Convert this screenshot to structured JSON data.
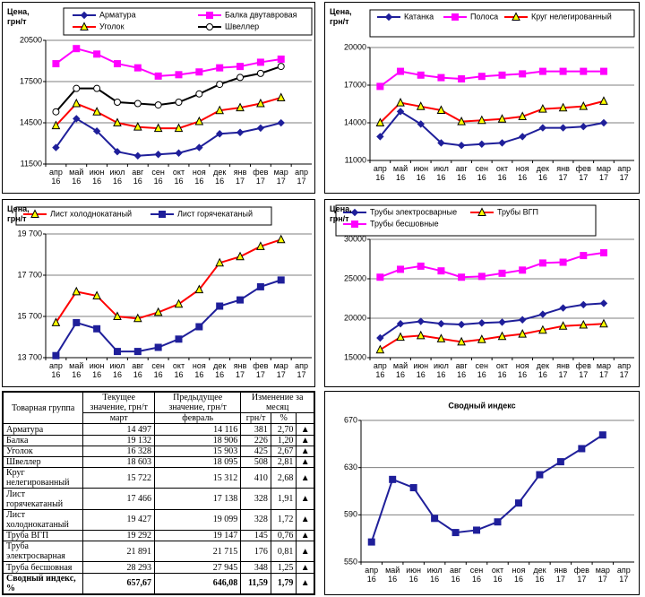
{
  "chart_data": [
    {
      "type": "line",
      "y_label": "Цена, грн/т",
      "categories": [
        "апр 16",
        "май 16",
        "июн 16",
        "июл 16",
        "авг 16",
        "сен 16",
        "окт 16",
        "ноя 16",
        "дек 16",
        "янв 17",
        "фев 17",
        "мар 17",
        "апр 17"
      ],
      "ylim": [
        11500,
        20500
      ],
      "yticks": [
        11500,
        14500,
        17500,
        20500
      ],
      "grid": true,
      "series": [
        {
          "name": "Арматура",
          "color": "#1f1f9a",
          "marker": "diamond",
          "values": [
            12700,
            14800,
            13900,
            12400,
            12100,
            12200,
            12300,
            12700,
            13700,
            13800,
            14116,
            14497,
            null
          ]
        },
        {
          "name": "Балка двутавровая",
          "color": "#ff00ff",
          "marker": "square",
          "values": [
            18800,
            19900,
            19500,
            18800,
            18500,
            17900,
            18000,
            18200,
            18500,
            18600,
            18906,
            19132,
            null
          ]
        },
        {
          "name": "Уголок",
          "color": "#ff0000",
          "marker": "triangle",
          "values": [
            14300,
            15900,
            15300,
            14500,
            14200,
            14100,
            14100,
            14600,
            15400,
            15600,
            15903,
            16328,
            null
          ]
        },
        {
          "name": "Швеллер",
          "color": "#000000",
          "marker": "circle",
          "values": [
            15300,
            17000,
            17000,
            16000,
            15900,
            15800,
            16000,
            16600,
            17300,
            17800,
            18095,
            18603,
            null
          ]
        }
      ]
    },
    {
      "type": "line",
      "y_label": "Цена, грн/т",
      "categories": [
        "апр 16",
        "май 16",
        "июн 16",
        "июл 16",
        "авг 16",
        "сен 16",
        "окт 16",
        "ноя 16",
        "дек 16",
        "янв 17",
        "фев 17",
        "мар 17",
        "апр 17"
      ],
      "ylim": [
        11000,
        20000
      ],
      "yticks": [
        11000,
        14000,
        17000,
        20000
      ],
      "grid": true,
      "series": [
        {
          "name": "Катанка",
          "color": "#1f1f9a",
          "marker": "diamond",
          "values": [
            12900,
            14900,
            13900,
            12400,
            12200,
            12300,
            12400,
            12900,
            13600,
            13600,
            13700,
            14000,
            null
          ]
        },
        {
          "name": "Полоса",
          "color": "#ff00ff",
          "marker": "square",
          "values": [
            16900,
            18100,
            17800,
            17600,
            17500,
            17700,
            17800,
            17900,
            18100,
            18100,
            18100,
            18100,
            null
          ]
        },
        {
          "name": "Круг нелегированный",
          "color": "#ff0000",
          "marker": "triangle",
          "values": [
            14000,
            15600,
            15300,
            15000,
            14100,
            14200,
            14300,
            14500,
            15100,
            15200,
            15312,
            15722,
            null
          ]
        }
      ]
    },
    {
      "type": "line",
      "y_label": "Цена, грн/т",
      "categories": [
        "апр 16",
        "май 16",
        "июн 16",
        "июл 16",
        "авг 16",
        "сен 16",
        "окт 16",
        "ноя 16",
        "дек 16",
        "янв 17",
        "фев 17",
        "мар 17",
        "апр 17"
      ],
      "ylim": [
        13700,
        19700
      ],
      "yticks": [
        {
          "value": 13700,
          "label": "13 700"
        },
        {
          "value": 15700,
          "label": "15 700"
        },
        {
          "value": 17700,
          "label": "17 700"
        },
        {
          "value": 19700,
          "label": "19 700"
        }
      ],
      "grid": true,
      "series": [
        {
          "name": "Лист холоднокатаный",
          "color": "#ff0000",
          "marker": "triangle",
          "values": [
            15400,
            16900,
            16700,
            15700,
            15600,
            15900,
            16300,
            17000,
            18300,
            18600,
            19099,
            19427,
            null
          ]
        },
        {
          "name": "Лист горячекатаный",
          "color": "#1f1f9a",
          "marker": "square",
          "values": [
            13800,
            15400,
            15100,
            14000,
            14000,
            14200,
            14600,
            15200,
            16200,
            16500,
            17138,
            17466,
            null
          ]
        }
      ]
    },
    {
      "type": "line",
      "y_label": "Цена, грн/т",
      "categories": [
        "апр 16",
        "май 16",
        "июн 16",
        "июл 16",
        "авг 16",
        "сен 16",
        "окт 16",
        "ноя 16",
        "дек 16",
        "янв 17",
        "фев 17",
        "мар 17",
        "апр 17"
      ],
      "ylim": [
        15000,
        30000
      ],
      "yticks": [
        15000,
        20000,
        25000,
        30000
      ],
      "grid": true,
      "series": [
        {
          "name": "Трубы электросварные",
          "color": "#1f1f9a",
          "marker": "diamond",
          "values": [
            17500,
            19300,
            19600,
            19300,
            19200,
            19400,
            19500,
            19800,
            20500,
            21300,
            21715,
            21891,
            null
          ]
        },
        {
          "name": "Трубы ВГП",
          "color": "#ff0000",
          "marker": "triangle",
          "values": [
            16000,
            17600,
            17800,
            17400,
            17000,
            17300,
            17700,
            18000,
            18500,
            19000,
            19147,
            19292,
            null
          ]
        },
        {
          "name": "Трубы бесшовные",
          "color": "#ff00ff",
          "marker": "square",
          "values": [
            25200,
            26200,
            26600,
            26000,
            25200,
            25300,
            25700,
            26100,
            27000,
            27100,
            27945,
            28293,
            null
          ]
        }
      ]
    },
    {
      "type": "line",
      "title": "Сводный индекс",
      "categories": [
        "апр 16",
        "май 16",
        "июн 16",
        "июл 16",
        "авг 16",
        "сен 16",
        "окт 16",
        "ноя 16",
        "дек 16",
        "янв 17",
        "фев 17",
        "мар 17",
        "апр 17"
      ],
      "ylim": [
        550,
        670
      ],
      "yticks": [
        550,
        590,
        630,
        670
      ],
      "grid": true,
      "series": [
        {
          "color": "#1f1f9a",
          "marker": "square",
          "values": [
            567,
            620,
            613,
            587,
            575,
            577,
            584,
            600,
            624,
            635,
            646.08,
            657.67,
            null
          ]
        }
      ]
    }
  ],
  "table": {
    "header": [
      "Товарная группа",
      "Текущее значение, грн/т",
      "Предыдущее значение, грн/т",
      "Изменение за месяц"
    ],
    "subheader": [
      "март",
      "февраль",
      "грн/т",
      "%"
    ],
    "rows": [
      [
        "Арматура",
        "14 497",
        "14 116",
        "381",
        "2,70",
        "▲"
      ],
      [
        "Балка",
        "19 132",
        "18 906",
        "226",
        "1,20",
        "▲"
      ],
      [
        "Уголок",
        "16 328",
        "15 903",
        "425",
        "2,67",
        "▲"
      ],
      [
        "Швеллер",
        "18 603",
        "18 095",
        "508",
        "2,81",
        "▲"
      ],
      [
        "Круг нелегированный",
        "15 722",
        "15 312",
        "410",
        "2,68",
        "▲"
      ],
      [
        "Лист горячекатаный",
        "17 466",
        "17 138",
        "328",
        "1,91",
        "▲"
      ],
      [
        "Лист холоднокатаный",
        "19 427",
        "19 099",
        "328",
        "1,72",
        "▲"
      ],
      [
        "Труба ВГП",
        "19 292",
        "19 147",
        "145",
        "0,76",
        "▲"
      ],
      [
        "Труба электросварная",
        "21 891",
        "21 715",
        "176",
        "0,81",
        "▲"
      ],
      [
        "Труба бесшовная",
        "28 293",
        "27 945",
        "348",
        "1,25",
        "▲"
      ]
    ],
    "total": [
      "Сводный индекс, %",
      "657,67",
      "646,08",
      "11,59",
      "1,79",
      "▲"
    ]
  }
}
